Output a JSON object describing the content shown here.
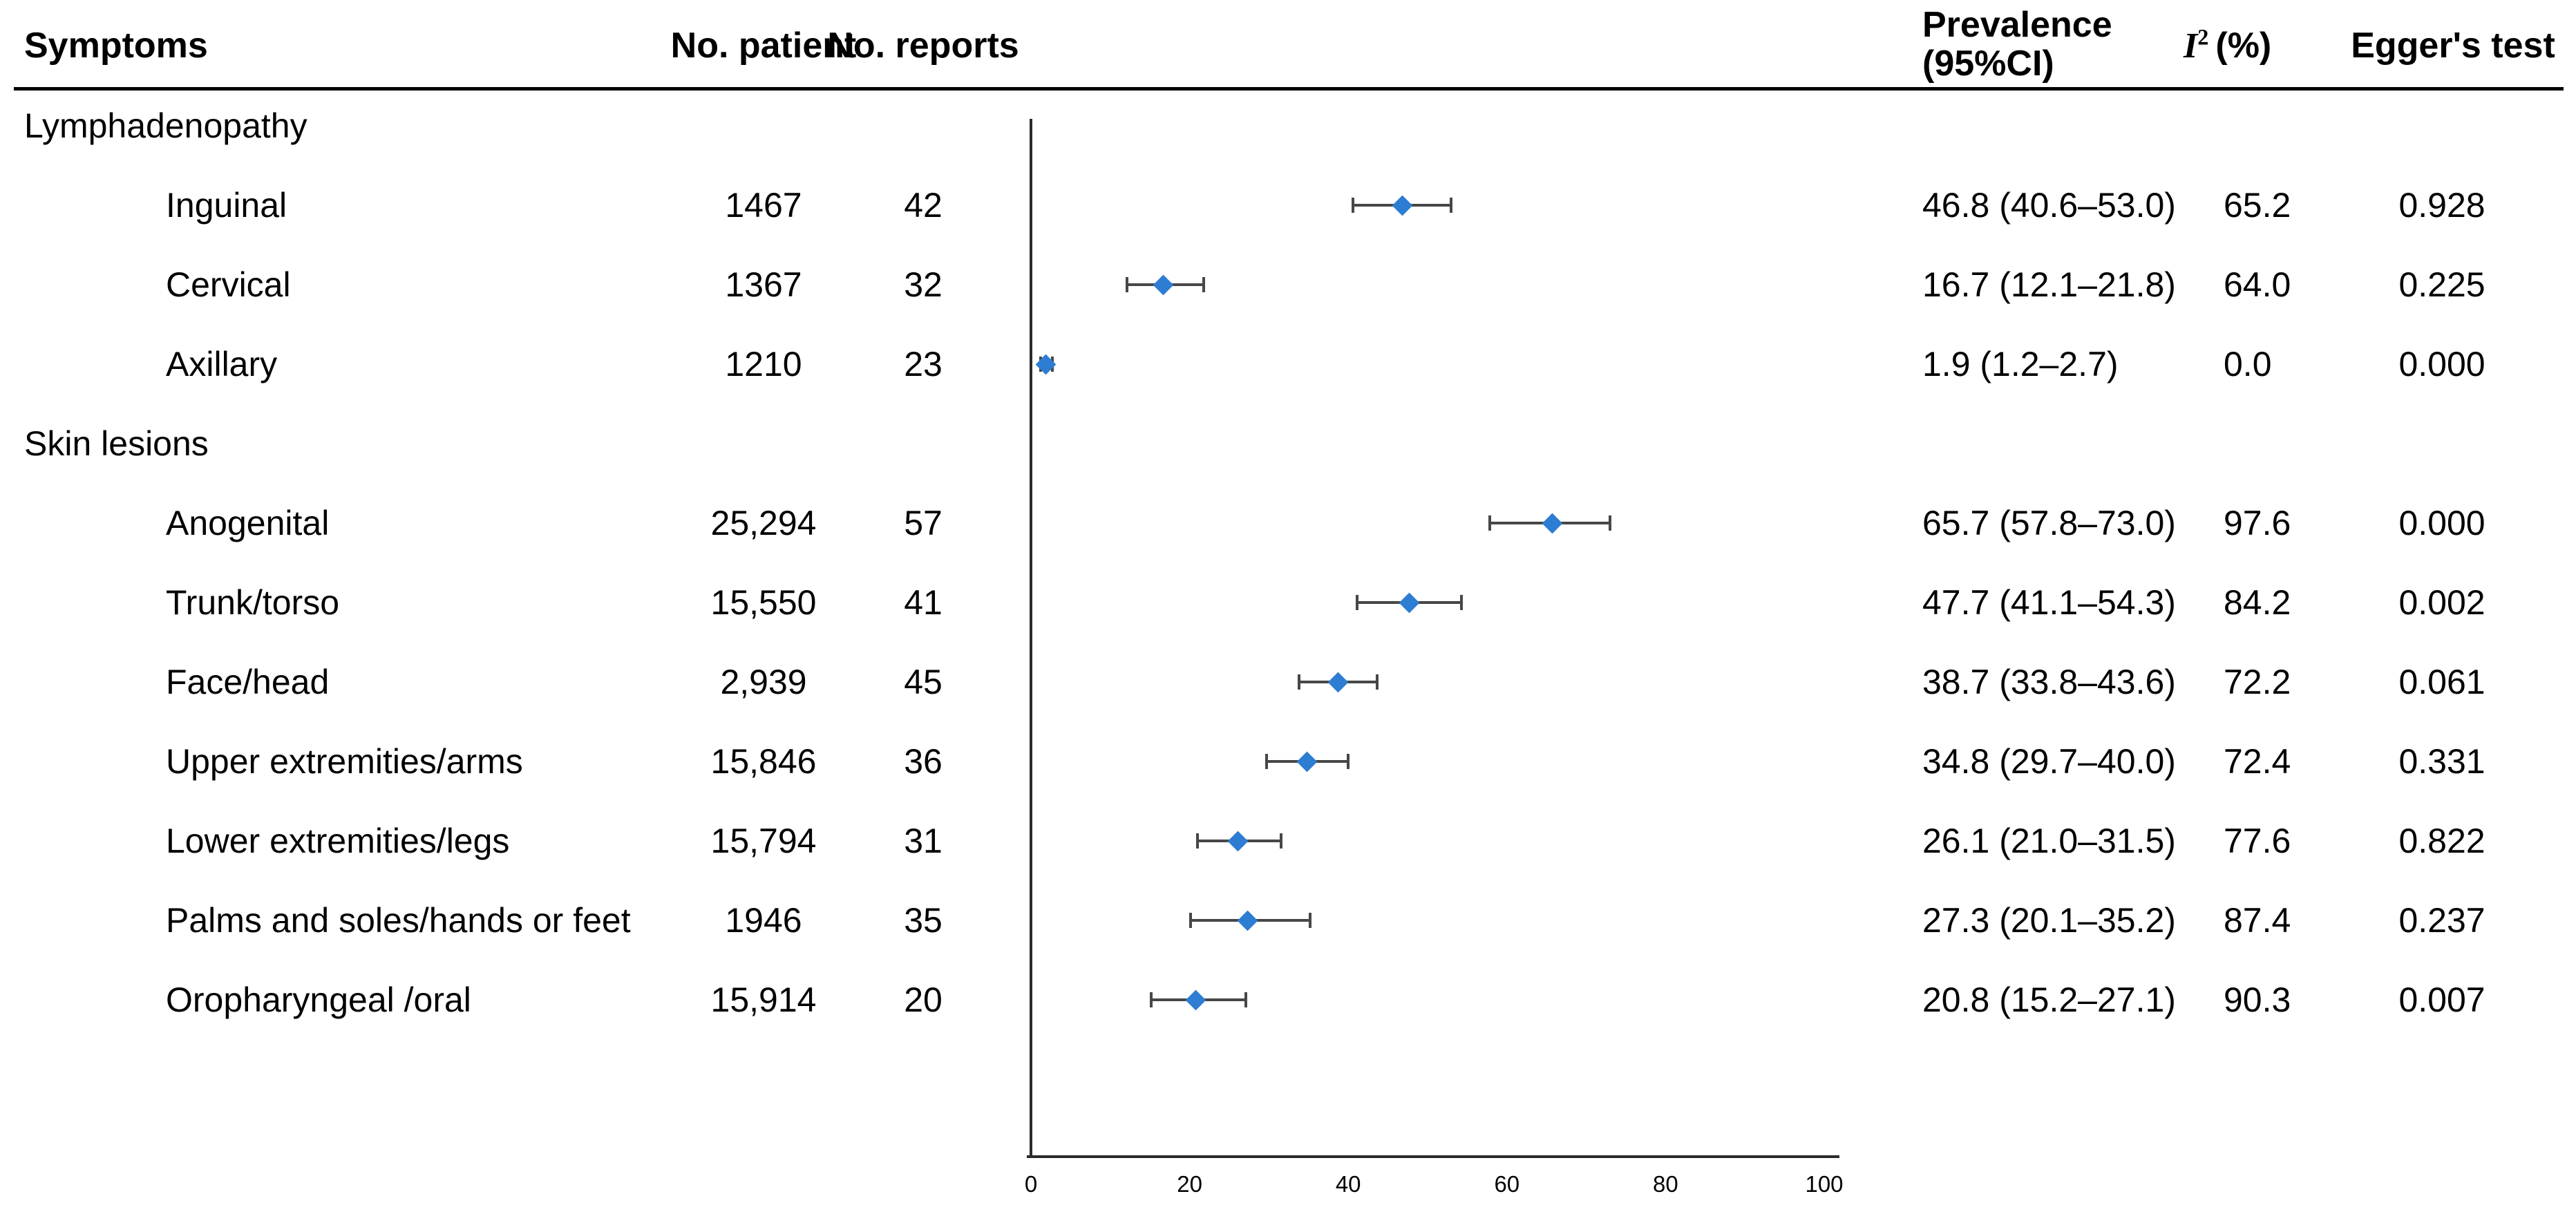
{
  "title_row": {
    "symptoms": "Symptoms",
    "no_patient": "No. patient",
    "no_reports": "No. reports",
    "prevalence_l1": "Prevalence",
    "prevalence_l2": "(95%CI)",
    "i2_base": "I",
    "i2_sup": "2",
    "i2_unit": "(%)",
    "eggers": "Egger's test"
  },
  "colors": {
    "marker_blue": "#2d7dd2",
    "ci_gray": "#474747",
    "axis_dark": "#2b2b2b",
    "text": "#000000"
  },
  "chart_data": {
    "type": "forest",
    "title": "",
    "xlabel": "",
    "ylabel": "",
    "x_axis": {
      "min": 0,
      "max": 100,
      "ticks": [
        0,
        20,
        40,
        60,
        80,
        100
      ],
      "grid": false
    },
    "marker_shape": "diamond",
    "groups": [
      {
        "label": "Lymphadenopathy",
        "items": [
          {
            "label": "Inguinal",
            "patients": "1467",
            "reports": "42",
            "prevalence": 46.8,
            "ci_low": 40.6,
            "ci_high": 53.0,
            "prevalence_text": "46.8 (40.6–53.0)",
            "i2": "65.2",
            "eggers": "0.928"
          },
          {
            "label": "Cervical",
            "patients": "1367",
            "reports": "32",
            "prevalence": 16.7,
            "ci_low": 12.1,
            "ci_high": 21.8,
            "prevalence_text": "16.7 (12.1–21.8)",
            "i2": "64.0",
            "eggers": "0.225"
          },
          {
            "label": "Axillary",
            "patients": "1210",
            "reports": "23",
            "prevalence": 1.9,
            "ci_low": 1.2,
            "ci_high": 2.7,
            "prevalence_text": "1.9 (1.2–2.7)",
            "i2": "0.0",
            "eggers": "0.000"
          }
        ]
      },
      {
        "label": "Skin lesions",
        "items": [
          {
            "label": "Anogenital",
            "patients": "25,294",
            "reports": "57",
            "prevalence": 65.7,
            "ci_low": 57.8,
            "ci_high": 73.0,
            "prevalence_text": "65.7 (57.8–73.0)",
            "i2": "97.6",
            "eggers": "0.000"
          },
          {
            "label": "Trunk/torso",
            "patients": "15,550",
            "reports": "41",
            "prevalence": 47.7,
            "ci_low": 41.1,
            "ci_high": 54.3,
            "prevalence_text": "47.7 (41.1–54.3)",
            "i2": "84.2",
            "eggers": "0.002"
          },
          {
            "label": "Face/head",
            "patients": "2,939",
            "reports": "45",
            "prevalence": 38.7,
            "ci_low": 33.8,
            "ci_high": 43.6,
            "prevalence_text": "38.7 (33.8–43.6)",
            "i2": "72.2",
            "eggers": "0.061"
          },
          {
            "label": "Upper extremities/arms",
            "patients": "15,846",
            "reports": "36",
            "prevalence": 34.8,
            "ci_low": 29.7,
            "ci_high": 40.0,
            "prevalence_text": "34.8 (29.7–40.0)",
            "i2": "72.4",
            "eggers": "0.331"
          },
          {
            "label": "Lower extremities/legs",
            "patients": "15,794",
            "reports": "31",
            "prevalence": 26.1,
            "ci_low": 21.0,
            "ci_high": 31.5,
            "prevalence_text": "26.1 (21.0–31.5)",
            "i2": "77.6",
            "eggers": "0.822"
          },
          {
            "label": "Palms and soles/hands or feet",
            "patients": "1946",
            "reports": "35",
            "prevalence": 27.3,
            "ci_low": 20.1,
            "ci_high": 35.2,
            "prevalence_text": "27.3 (20.1–35.2)",
            "i2": "87.4",
            "eggers": "0.237"
          },
          {
            "label": "Oropharyngeal /oral",
            "patients": "15,914",
            "reports": "20",
            "prevalence": 20.8,
            "ci_low": 15.2,
            "ci_high": 27.1,
            "prevalence_text": "20.8 (15.2–27.1)",
            "i2": "90.3",
            "eggers": "0.007"
          }
        ]
      }
    ]
  }
}
